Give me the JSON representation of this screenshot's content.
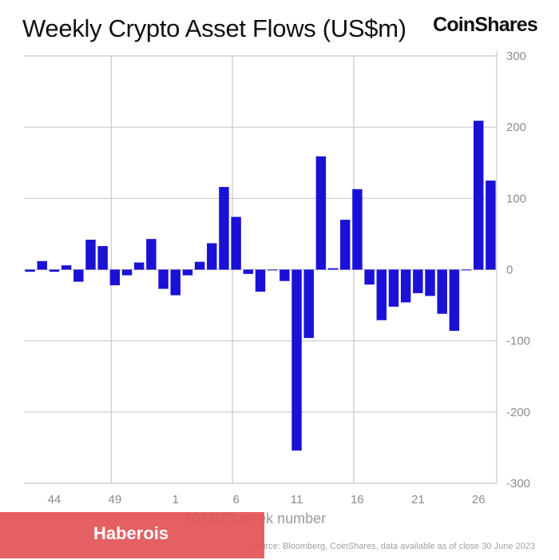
{
  "header": {
    "title": "Weekly Crypto Asset Flows (US$m)",
    "brand": "CoinShares"
  },
  "footer": {
    "source": "Source: Bloomberg, CoinShares, data available as of close 30 June 2023"
  },
  "overlay": {
    "banner_text": "Haberois",
    "banner_color": "#e25256"
  },
  "chart_data": {
    "type": "bar",
    "title": "Weekly Crypto Asset Flows (US$m)",
    "xlabel": "2022/23 week number",
    "ylabel": "",
    "bar_color": "#1a10d6",
    "ylim": [
      -300,
      300
    ],
    "y_ticks": [
      300,
      200,
      100,
      0,
      -100,
      -200,
      -300
    ],
    "y_axis_position": "right",
    "grid": true,
    "x_tick_labels": [
      {
        "label": "44",
        "week_index": 2
      },
      {
        "label": "49",
        "week_index": 7
      },
      {
        "label": "1",
        "week_index": 12
      },
      {
        "label": "6",
        "week_index": 17
      },
      {
        "label": "11",
        "week_index": 22
      },
      {
        "label": "16",
        "week_index": 27
      },
      {
        "label": "21",
        "week_index": 32
      },
      {
        "label": "26",
        "week_index": 37
      }
    ],
    "x_gridline_week_indices": [
      7,
      17,
      27
    ],
    "values": [
      -3,
      12,
      -3,
      6,
      -17,
      42,
      33,
      -22,
      -8,
      10,
      43,
      -27,
      -36,
      -8,
      11,
      37,
      116,
      74,
      -6,
      -31,
      -1,
      -16,
      -254,
      -96,
      159,
      2,
      70,
      113,
      -21,
      -71,
      -52,
      -46,
      -33,
      -37,
      -62,
      -86,
      -1,
      209,
      125
    ]
  }
}
